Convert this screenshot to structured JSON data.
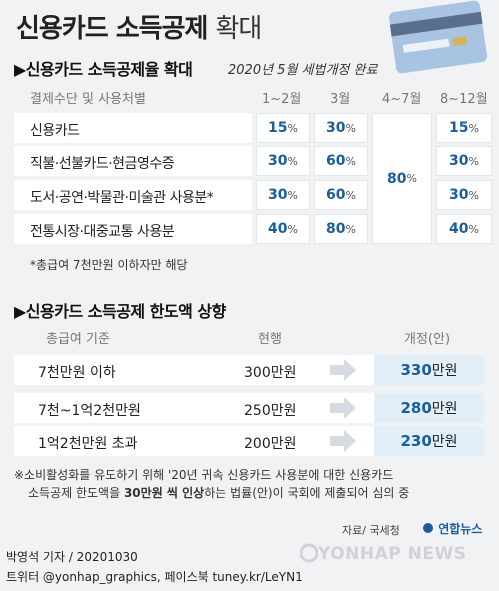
{
  "title_main": "신용카드 소득공제",
  "title_sub": "확대",
  "section1": {
    "title": "▶신용카드 소득공제율 확대",
    "subtitle": "2020년 5월 세법개정 완료",
    "headers": [
      "결제수단 및 사용처별",
      "1~2월",
      "3월",
      "4~7월",
      "8~12월"
    ],
    "rows": [
      {
        "label": "신용카드",
        "jan_feb": "15",
        "mar": "30",
        "aug_dec": "15"
      },
      {
        "label": "직불·선불카드·현금영수증",
        "jan_feb": "30",
        "mar": "60",
        "aug_dec": "30"
      },
      {
        "label": "도서·공연·박물관·미술관 사용분*",
        "jan_feb": "30",
        "mar": "60",
        "aug_dec": "30"
      },
      {
        "label": "전통시장·대중교통 사용분",
        "jan_feb": "40",
        "mar": "80",
        "aug_dec": "40"
      }
    ],
    "apr_jul_merged": "80",
    "pct": "%",
    "note": "*총급여 7천만원 이하자만 해당"
  },
  "section2": {
    "title": "▶신용카드 소득공제 한도액 상향",
    "headers": [
      "총급여 기준",
      "현행",
      "개정(안)"
    ],
    "rows": [
      {
        "label": "7천만원 이하",
        "current": "300만원",
        "new_num": "330",
        "new_unit": "만원"
      },
      {
        "label": "7천~1억2천만원",
        "current": "250만원",
        "new_num": "280",
        "new_unit": "만원"
      },
      {
        "label": "1억2천만원 초과",
        "current": "200만원",
        "new_num": "230",
        "new_unit": "만원"
      }
    ]
  },
  "footnote_line1": "※소비활성화를 유도하기 위해 '20년 귀속 신용카드 사용분에 대한 신용카드",
  "footnote_line2_a": "소득공제 한도액을 ",
  "footnote_line2_b": "30만원 씩 인상",
  "footnote_line2_c": "하는 법률(안)이 국회에 제출되어 심의 중",
  "source": "자료/ 국세청",
  "logo_text": "연합뉴스",
  "byline1": "박영석 기자 / 20201030",
  "byline2": "트위터 @yonhap_graphics, 페이스북 tuney.kr/LeYN1",
  "watermark": "YONHAP NEWS",
  "colors": {
    "accent": "#1a5e9c",
    "highlight": "#e2eef8",
    "bg": "#f1f2f4"
  }
}
